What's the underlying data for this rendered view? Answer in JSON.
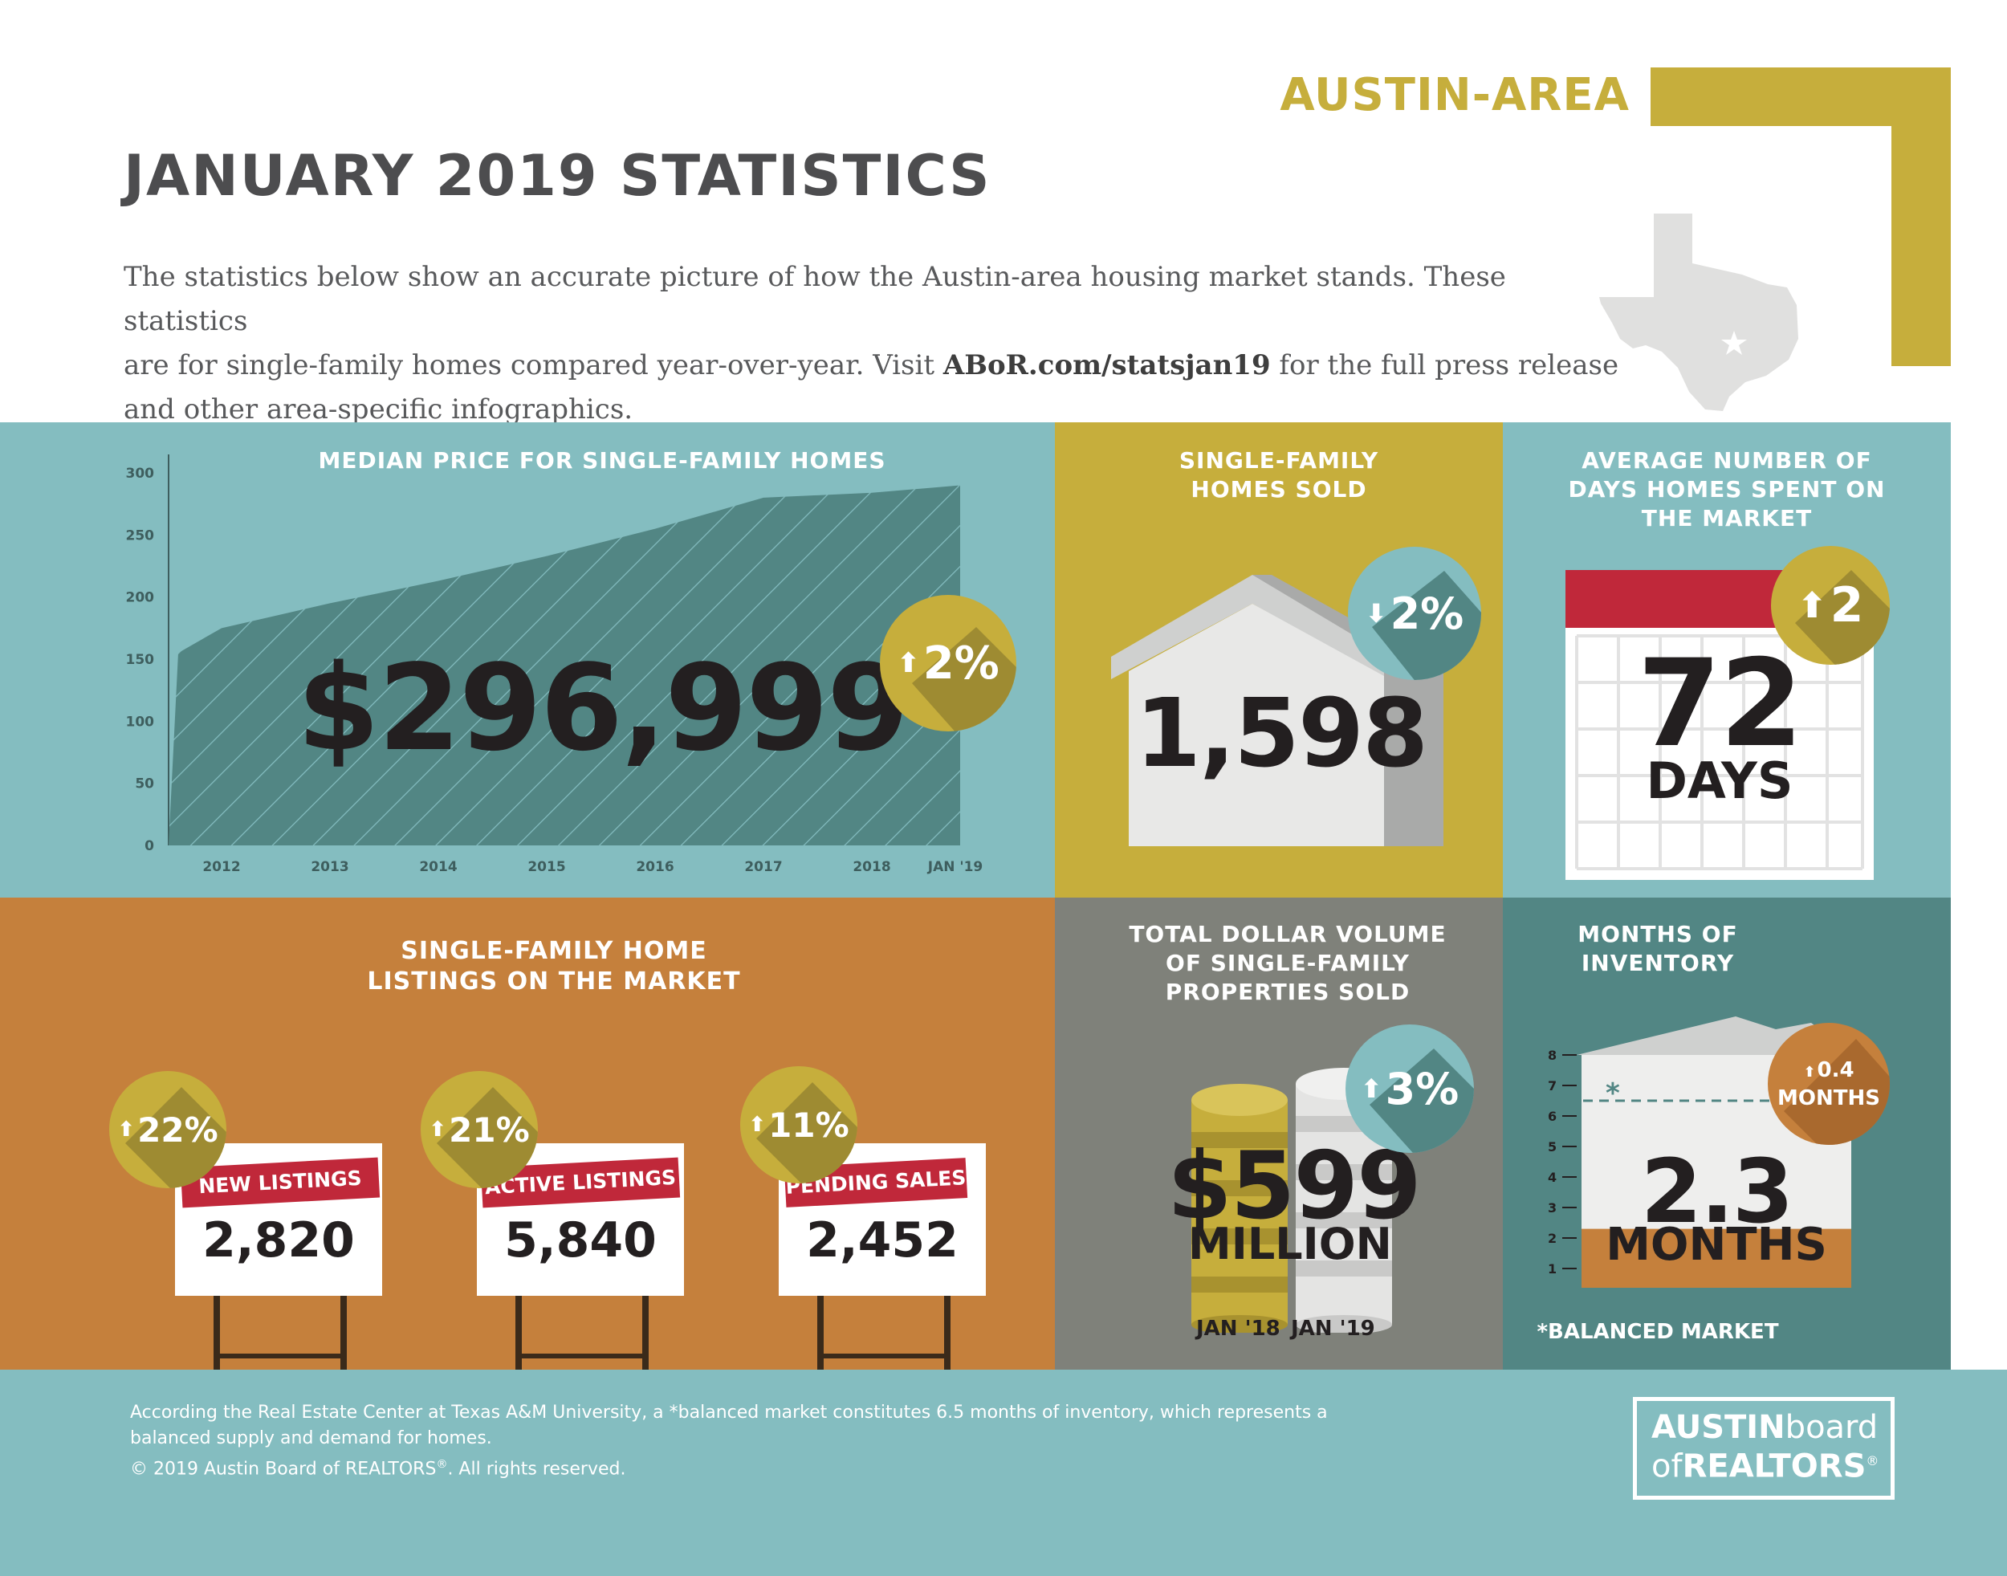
{
  "header": {
    "region": "AUSTIN-AREA",
    "title": "JANUARY 2019 STATISTICS",
    "intro_line1": "The statistics below show an accurate picture of how the Austin-area housing market stands. These statistics",
    "intro_line2_pre": "are for single-family homes compared year-over-year. Visit ",
    "intro_link": "ABoR.com/statsjan19",
    "intro_line2_post": " for the full press release",
    "intro_line3": "and other area-specific infographics."
  },
  "median": {
    "title": "MEDIAN PRICE FOR  SINGLE-FAMILY HOMES",
    "value": "$296,999",
    "change": "2%",
    "change_dir": "up"
  },
  "homes_sold": {
    "title_line1": "SINGLE-FAMILY",
    "title_line2": "HOMES SOLD",
    "value": "1,598",
    "change": "2%",
    "change_dir": "down"
  },
  "days_on_market": {
    "title_line1": "AVERAGE NUMBER OF",
    "title_line2": "DAYS HOMES SPENT ON",
    "title_line3": "THE MARKET",
    "value": "72",
    "unit": "DAYS",
    "change": "2",
    "change_dir": "up"
  },
  "listings": {
    "title_line1": "SINGLE-FAMILY HOME",
    "title_line2": "LISTINGS ON THE MARKET",
    "items": [
      {
        "label": "NEW LISTINGS",
        "value": "2,820",
        "change": "22%"
      },
      {
        "label": "ACTIVE LISTINGS",
        "value": "5,840",
        "change": "21%"
      },
      {
        "label": "PENDING SALES",
        "value": "2,452",
        "change": "11%"
      }
    ]
  },
  "dollar_volume": {
    "title_line1": "TOTAL DOLLAR VOLUME",
    "title_line2": "OF SINGLE-FAMILY",
    "title_line3": "PROPERTIES SOLD",
    "value": "$599",
    "unit": "MILLION",
    "change": "3%",
    "label_a": "JAN '18",
    "label_b": "JAN '19"
  },
  "inventory": {
    "title_line1": "MONTHS OF",
    "title_line2": "INVENTORY",
    "value": "2.3",
    "unit": "MONTHS",
    "change_line1": "0.4",
    "change_line2": "MONTHS",
    "star": "*",
    "footnote": "*BALANCED MARKET",
    "balanced_months": 6.5,
    "current_months": 2.3,
    "axis_ticks": [
      "8",
      "7",
      "6",
      "5",
      "4",
      "3",
      "2",
      "1"
    ]
  },
  "footer": {
    "note_line1": "According the Real Estate Center at Texas A&M University, a *balanced market constitutes 6.5 months of inventory, which represents a",
    "note_line2": "balanced supply and demand for homes.",
    "copyright_pre": "© 2019  Austin Board of REALTORS",
    "copyright_reg": "®",
    "copyright_post": ".  All rights reserved.",
    "logo_bold1": "AUSTIN",
    "logo_light1": "board",
    "logo_light2": "of",
    "logo_bold2": "REALTORS",
    "logo_reg": "®"
  },
  "colors": {
    "teal": "#84bdc0",
    "dark_teal": "#528684",
    "gold": "#c6ae3c",
    "orange": "#c5803c",
    "gray": "#7f817a",
    "red": "#c0283a",
    "text_dark": "#231f20"
  },
  "chart_data": {
    "type": "area",
    "x": [
      "2012",
      "2013",
      "2014",
      "2015",
      "2016",
      "2017",
      "2018",
      "JAN '19"
    ],
    "y_ticks": [
      "300",
      "250",
      "200",
      "150",
      "100",
      "50",
      "0"
    ],
    "ylim": [
      0,
      300
    ],
    "points": [
      {
        "x": 2011.6,
        "y": 155
      },
      {
        "x": 2012,
        "y": 175
      },
      {
        "x": 2013,
        "y": 195
      },
      {
        "x": 2014,
        "y": 213
      },
      {
        "x": 2015,
        "y": 233
      },
      {
        "x": 2016,
        "y": 255
      },
      {
        "x": 2017,
        "y": 280
      },
      {
        "x": 2018,
        "y": 284
      },
      {
        "x": 2019,
        "y": 290
      }
    ],
    "grid": false
  }
}
